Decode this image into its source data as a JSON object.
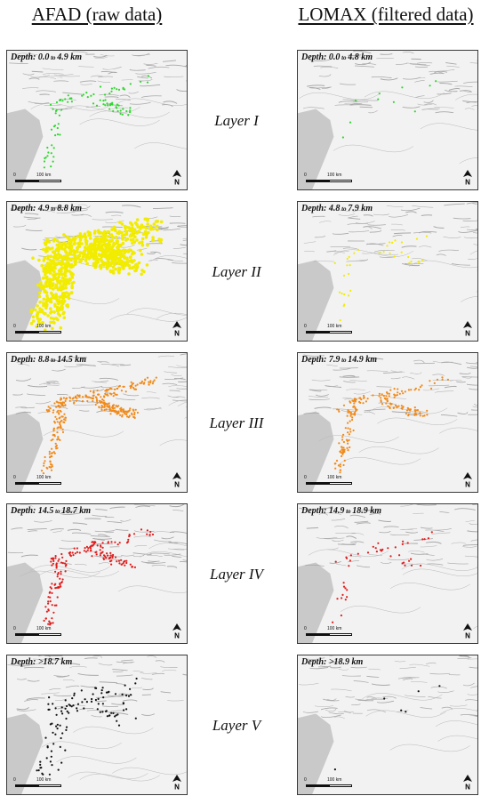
{
  "titles": {
    "left": "AFAD (raw data)",
    "right": "LOMAX (filtered data)"
  },
  "scale_labels": {
    "zero": "0",
    "distance": "100 km"
  },
  "north_label": "N",
  "layers": [
    {
      "label": "Layer I",
      "color": "#2fd82f",
      "left": {
        "depth_from": "0.0",
        "depth_to": "4.9",
        "unit": "km",
        "points": 90,
        "density": "moderate"
      },
      "right": {
        "depth_from": "0.0",
        "depth_to": "4.8",
        "unit": "km",
        "points": 10,
        "density": "very sparse"
      }
    },
    {
      "label": "Layer II",
      "color": "#f2ec00",
      "left": {
        "depth_from": "4.9",
        "depth_to": "8.8",
        "unit": "km",
        "points": 900,
        "density": "very dense"
      },
      "right": {
        "depth_from": "4.8",
        "depth_to": "7.9",
        "unit": "km",
        "points": 35,
        "density": "sparse"
      }
    },
    {
      "label": "Layer III",
      "color": "#f08a1a",
      "left": {
        "depth_from": "8.8",
        "depth_to": "14.5",
        "unit": "km",
        "points": 330,
        "density": "dense"
      },
      "right": {
        "depth_from": "7.9",
        "depth_to": "14.9",
        "unit": "km",
        "points": 190,
        "density": "moderate"
      }
    },
    {
      "label": "Layer IV",
      "color": "#e01c1c",
      "left": {
        "depth_from": "14.5",
        "depth_to": "18.7",
        "unit": "km",
        "points": 180,
        "density": "moderate"
      },
      "right": {
        "depth_from": "14.9",
        "depth_to": "18.9",
        "unit": "km",
        "points": 45,
        "density": "sparse"
      }
    },
    {
      "label": "Layer V",
      "color": "#111111",
      "left": {
        "depth_prefix": ">",
        "depth_from": "18.7",
        "unit": "km",
        "points": 110,
        "density": "scattered"
      },
      "right": {
        "depth_prefix": ">",
        "depth_from": "18.9",
        "unit": "km",
        "points": 6,
        "density": "very sparse"
      }
    }
  ],
  "depth_label": "Depth:",
  "to_word": "to",
  "colors": {
    "relief": "#a8a8a8",
    "sea": "#c9c9c9",
    "background": "#f2f2f2"
  }
}
